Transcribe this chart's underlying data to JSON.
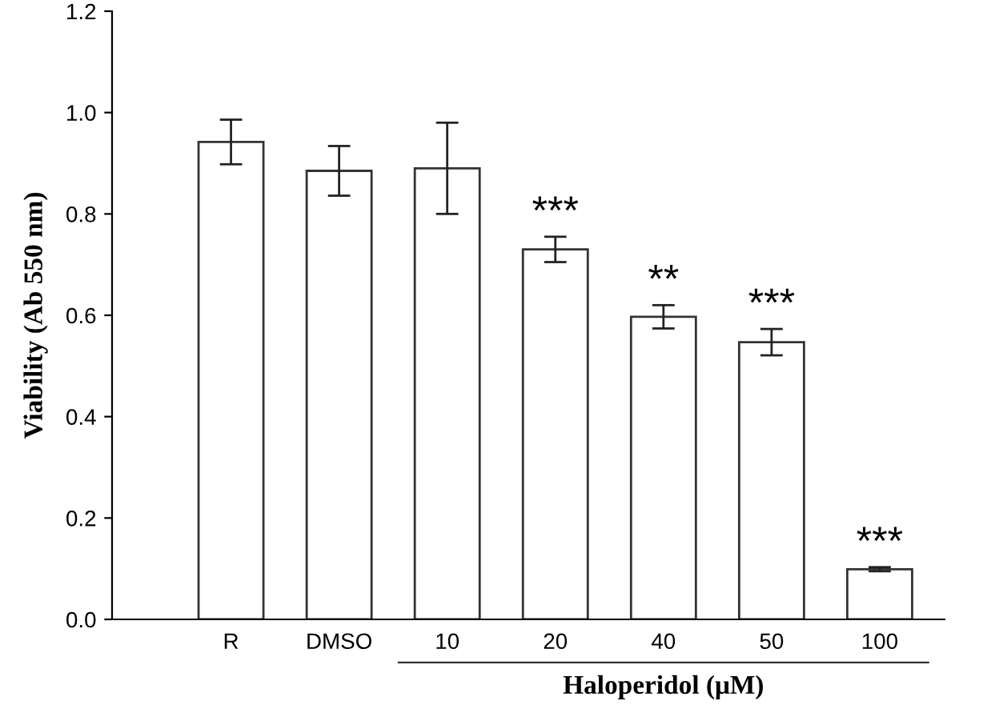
{
  "chart_data": {
    "type": "bar",
    "categories": [
      "R",
      "DMSO",
      "10",
      "20",
      "40",
      "50",
      "100"
    ],
    "values": [
      0.942,
      0.885,
      0.89,
      0.73,
      0.597,
      0.547,
      0.099
    ],
    "errors": [
      0.044,
      0.049,
      0.09,
      0.025,
      0.023,
      0.026,
      0.004
    ],
    "color": "#ffffff",
    "ylim": [
      0,
      1.2
    ],
    "yticks": [
      {
        "value": 0,
        "label": "0.0"
      },
      {
        "value": 0.2,
        "label": "0.2"
      },
      {
        "value": 0.4,
        "label": "0.4"
      },
      {
        "value": 0.6,
        "label": "0.6"
      },
      {
        "value": 0.8,
        "label": "0.8"
      },
      {
        "value": 1.0,
        "label": "1.0"
      },
      {
        "value": 1.2,
        "label": "1.2"
      }
    ],
    "ylabel": "Viability (Ab 550 nm)",
    "xlabel": "Haloperidol (μM)",
    "grid": false,
    "legend": false,
    "annotations": [
      {
        "text": "***",
        "x": "20",
        "y": 0.755
      },
      {
        "text": "**",
        "x": "40",
        "y": 0.62
      },
      {
        "text": "***",
        "x": "50",
        "y": 0.573
      },
      {
        "text": "***",
        "x": "100",
        "y": 0.103
      }
    ]
  }
}
